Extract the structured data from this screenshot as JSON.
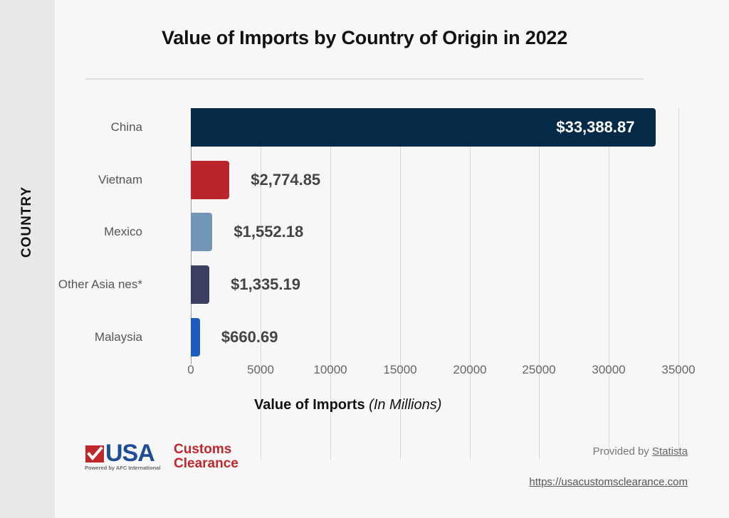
{
  "chart_data": {
    "type": "bar",
    "orientation": "horizontal",
    "title": "Value of Imports by Country of Origin in 2022",
    "xlabel": "Value of Imports",
    "xlabel_suffix": "(In Millions)",
    "ylabel": "COUNTRY",
    "categories": [
      "China",
      "Vietnam",
      "Mexico",
      "Other Asia nes*",
      "Malaysia"
    ],
    "values": [
      33388.87,
      2774.85,
      1552.18,
      1335.19,
      660.69
    ],
    "value_labels": [
      "$33,388.87",
      "$2,774.85",
      "$1,552.18",
      "$1,335.19",
      "$660.69"
    ],
    "colors": [
      "#052a48",
      "#b9252b",
      "#7294b6",
      "#3b3f64",
      "#1c5cc0"
    ],
    "xlim": [
      0,
      35000
    ],
    "xticks": [
      "0",
      "5000",
      "10000",
      "15000",
      "20000",
      "25000",
      "30000",
      "35000"
    ],
    "grid": true,
    "legend": null
  },
  "footer": {
    "logo": {
      "brand": "USA",
      "line1": "Customs",
      "line2": "Clearance",
      "tagline": "Powered by AFC International",
      "check_color": "#c0272d",
      "brand_color": "#1f4e96"
    },
    "provided_prefix": "Provided by",
    "provided_link": "Statista",
    "url": "https://usacustomsclearance.com"
  }
}
